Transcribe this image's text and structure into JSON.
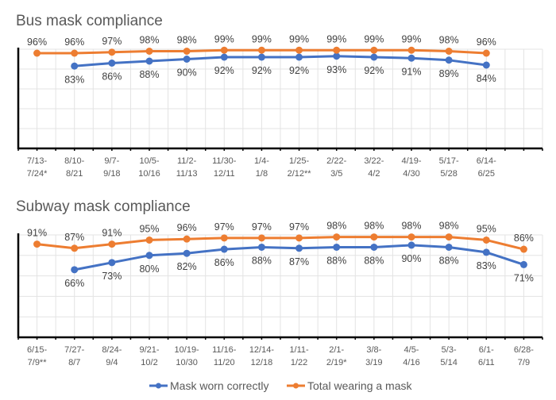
{
  "colors": {
    "correct": "#4472C4",
    "total": "#ED7D31"
  },
  "legend": [
    {
      "key": "correct",
      "label": "Mask worn correctly"
    },
    {
      "key": "total",
      "label": "Total wearing a mask"
    }
  ],
  "chart_data": [
    {
      "type": "line",
      "title": "Bus mask compliance",
      "xlabel": "",
      "ylabel": "",
      "ylim": [
        0,
        100
      ],
      "grid": true,
      "legend": "bottom",
      "categories": [
        [
          "7/13-",
          "7/24*"
        ],
        [
          "8/10-",
          "8/21"
        ],
        [
          "9/7-",
          "9/18"
        ],
        [
          "10/5-",
          "10/16"
        ],
        [
          "11/2-",
          "11/13"
        ],
        [
          "11/30-",
          "12/11"
        ],
        [
          "1/4-",
          "1/8"
        ],
        [
          "1/25-",
          "2/12**"
        ],
        [
          "2/22-",
          "3/5"
        ],
        [
          "3/22-",
          "4/2"
        ],
        [
          "4/19-",
          "4/30"
        ],
        [
          "5/17-",
          "5/28"
        ],
        [
          "6/14-",
          "6/25"
        ]
      ],
      "series": [
        {
          "name": "Mask worn correctly",
          "key": "correct",
          "values": [
            null,
            83,
            86,
            88,
            90,
            92,
            92,
            92,
            93,
            92,
            91,
            89,
            84
          ]
        },
        {
          "name": "Total wearing a mask",
          "key": "total",
          "values": [
            96,
            96,
            97,
            98,
            98,
            99,
            99,
            99,
            99,
            99,
            99,
            98,
            96
          ]
        }
      ]
    },
    {
      "type": "line",
      "title": "Subway mask compliance",
      "xlabel": "",
      "ylabel": "",
      "ylim": [
        0,
        100
      ],
      "grid": true,
      "legend": "bottom",
      "categories": [
        [
          "6/15-",
          "7/9**"
        ],
        [
          "7/27-",
          "8/7"
        ],
        [
          "8/24-",
          "9/4"
        ],
        [
          "9/21-",
          "10/2"
        ],
        [
          "10/19-",
          "10/30"
        ],
        [
          "11/16-",
          "11/20"
        ],
        [
          "12/14-",
          "12/18"
        ],
        [
          "1/11-",
          "1/22"
        ],
        [
          "2/1-",
          "2/19*"
        ],
        [
          "3/8-",
          "3/19"
        ],
        [
          "4/5-",
          "4/16"
        ],
        [
          "5/3-",
          "5/14"
        ],
        [
          "6/1-",
          "6/11"
        ],
        [
          "6/28-",
          "7/9"
        ]
      ],
      "series": [
        {
          "name": "Mask worn correctly",
          "key": "correct",
          "values": [
            null,
            66,
            73,
            80,
            82,
            86,
            88,
            87,
            88,
            88,
            90,
            88,
            83,
            71
          ]
        },
        {
          "name": "Total wearing a mask",
          "key": "total",
          "values": [
            91,
            87,
            91,
            95,
            96,
            97,
            97,
            97,
            98,
            98,
            98,
            98,
            95,
            86
          ]
        }
      ]
    }
  ]
}
